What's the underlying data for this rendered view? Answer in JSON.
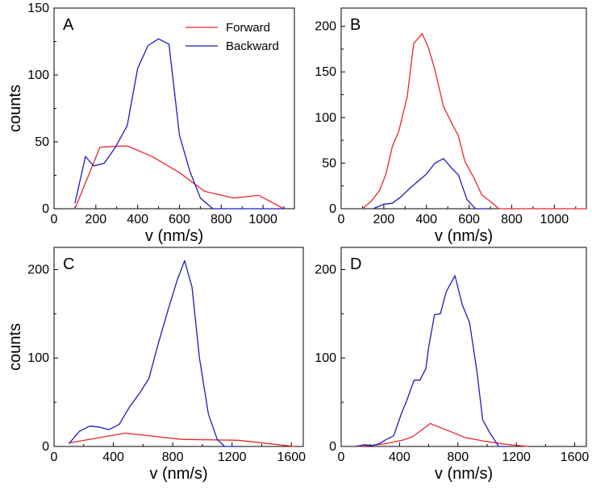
{
  "figure": {
    "legend": [
      {
        "label": "Forward",
        "color": "#e8262b"
      },
      {
        "label": "Backward",
        "color": "#1d1dbd"
      }
    ]
  },
  "chart_data": [
    {
      "type": "line",
      "panel": "A",
      "xlabel": "v (nm/s)",
      "ylabel": "counts",
      "xlim": [
        0,
        1150
      ],
      "ylim": [
        0,
        150
      ],
      "xticks": [
        0,
        200,
        400,
        600,
        800,
        1000
      ],
      "yticks": [
        0,
        50,
        100,
        150
      ],
      "legend_position": "top-right",
      "series": [
        {
          "name": "Forward",
          "color": "#e8262b",
          "points": [
            [
              100,
              0
            ],
            [
              220,
              46
            ],
            [
              350,
              47
            ],
            [
              470,
              39
            ],
            [
              600,
              27
            ],
            [
              720,
              13
            ],
            [
              860,
              8
            ],
            [
              980,
              10
            ],
            [
              1100,
              0
            ]
          ]
        },
        {
          "name": "Backward",
          "color": "#1d1dbd",
          "points": [
            [
              100,
              4
            ],
            [
              150,
              39
            ],
            [
              190,
              32
            ],
            [
              240,
              34
            ],
            [
              290,
              45
            ],
            [
              350,
              62
            ],
            [
              400,
              105
            ],
            [
              450,
              122
            ],
            [
              500,
              127
            ],
            [
              550,
              123
            ],
            [
              600,
              55
            ],
            [
              650,
              28
            ],
            [
              700,
              8
            ],
            [
              760,
              0
            ],
            [
              1100,
              0
            ]
          ]
        }
      ]
    },
    {
      "type": "line",
      "panel": "B",
      "xlabel": "v (nm/s)",
      "ylabel": "",
      "xlim": [
        0,
        1150
      ],
      "ylim": [
        0,
        220
      ],
      "xticks": [
        0,
        200,
        400,
        600,
        800,
        1000
      ],
      "yticks": [
        0,
        50,
        100,
        150,
        200
      ],
      "series": [
        {
          "name": "Forward",
          "color": "#e8262b",
          "points": [
            [
              100,
              0
            ],
            [
              140,
              8
            ],
            [
              180,
              20
            ],
            [
              210,
              38
            ],
            [
              240,
              68
            ],
            [
              270,
              85
            ],
            [
              310,
              123
            ],
            [
              340,
              181
            ],
            [
              380,
              192
            ],
            [
              410,
              176
            ],
            [
              440,
              152
            ],
            [
              480,
              112
            ],
            [
              520,
              93
            ],
            [
              550,
              80
            ],
            [
              580,
              52
            ],
            [
              620,
              35
            ],
            [
              660,
              15
            ],
            [
              700,
              8
            ],
            [
              740,
              0
            ],
            [
              1150,
              0
            ]
          ]
        },
        {
          "name": "Backward",
          "color": "#1d1dbd",
          "points": [
            [
              150,
              0
            ],
            [
              200,
              5
            ],
            [
              240,
              6
            ],
            [
              280,
              13
            ],
            [
              320,
              22
            ],
            [
              360,
              30
            ],
            [
              400,
              38
            ],
            [
              440,
              50
            ],
            [
              480,
              55
            ],
            [
              520,
              44
            ],
            [
              550,
              37
            ],
            [
              590,
              10
            ],
            [
              630,
              0
            ],
            [
              690,
              0
            ]
          ]
        }
      ]
    },
    {
      "type": "line",
      "panel": "C",
      "xlabel": "v (nm/s)",
      "ylabel": "counts",
      "xlim": [
        0,
        1680
      ],
      "ylim": [
        0,
        225
      ],
      "xticks": [
        0,
        400,
        800,
        1200,
        1600
      ],
      "yticks": [
        0,
        100,
        200
      ],
      "series": [
        {
          "name": "Forward",
          "color": "#e8262b",
          "points": [
            [
              100,
              4
            ],
            [
              480,
              15
            ],
            [
              860,
              8
            ],
            [
              1240,
              7
            ],
            [
              1620,
              0
            ]
          ]
        },
        {
          "name": "Backward",
          "color": "#1d1dbd",
          "points": [
            [
              100,
              3
            ],
            [
              170,
              17
            ],
            [
              240,
              23
            ],
            [
              300,
              22
            ],
            [
              370,
              19
            ],
            [
              440,
              25
            ],
            [
              510,
              45
            ],
            [
              580,
              61
            ],
            [
              640,
              77
            ],
            [
              700,
              115
            ],
            [
              770,
              155
            ],
            [
              830,
              188
            ],
            [
              880,
              210
            ],
            [
              930,
              180
            ],
            [
              980,
              100
            ],
            [
              1040,
              37
            ],
            [
              1100,
              8
            ],
            [
              1150,
              0
            ],
            [
              1240,
              0
            ]
          ]
        }
      ]
    },
    {
      "type": "line",
      "panel": "D",
      "xlabel": "v (nm/s)",
      "ylabel": "",
      "xlim": [
        0,
        1680
      ],
      "ylim": [
        0,
        225
      ],
      "xticks": [
        0,
        400,
        800,
        1200,
        1600
      ],
      "yticks": [
        0,
        100,
        200
      ],
      "series": [
        {
          "name": "Forward",
          "color": "#e8262b",
          "points": [
            [
              100,
              0
            ],
            [
              200,
              1
            ],
            [
              300,
              3
            ],
            [
              420,
              7
            ],
            [
              490,
              11
            ],
            [
              610,
              26
            ],
            [
              730,
              18
            ],
            [
              850,
              10
            ],
            [
              980,
              6
            ],
            [
              1100,
              3
            ],
            [
              1280,
              0
            ]
          ]
        },
        {
          "name": "Backward",
          "color": "#1d1dbd",
          "points": [
            [
              100,
              0
            ],
            [
              160,
              2
            ],
            [
              210,
              1
            ],
            [
              260,
              3
            ],
            [
              310,
              8
            ],
            [
              360,
              12
            ],
            [
              410,
              36
            ],
            [
              450,
              52
            ],
            [
              500,
              75
            ],
            [
              540,
              75
            ],
            [
              580,
              88
            ],
            [
              600,
              113
            ],
            [
              640,
              149
            ],
            [
              680,
              150
            ],
            [
              720,
              175
            ],
            [
              780,
              193
            ],
            [
              830,
              160
            ],
            [
              880,
              140
            ],
            [
              930,
              85
            ],
            [
              970,
              30
            ],
            [
              1020,
              15
            ],
            [
              1080,
              0
            ],
            [
              1150,
              0
            ]
          ]
        }
      ]
    }
  ]
}
